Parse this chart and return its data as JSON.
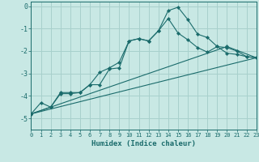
{
  "xlabel": "Humidex (Indice chaleur)",
  "background_color": "#c8e8e4",
  "grid_color": "#a8d0cc",
  "line_color": "#1a6b6b",
  "xlim": [
    0,
    23
  ],
  "ylim": [
    -5.5,
    0.2
  ],
  "yticks": [
    0,
    -1,
    -2,
    -3,
    -4,
    -5
  ],
  "xticks": [
    0,
    1,
    2,
    3,
    4,
    5,
    6,
    7,
    8,
    9,
    10,
    11,
    12,
    13,
    14,
    15,
    16,
    17,
    18,
    19,
    20,
    21,
    22,
    23
  ],
  "series": [
    {
      "x": [
        0,
        1,
        2,
        3,
        4,
        5,
        6,
        7,
        8,
        9,
        10,
        11,
        12,
        13,
        14,
        15,
        16,
        17,
        18,
        19,
        20,
        21,
        22,
        23
      ],
      "y": [
        -4.8,
        -4.3,
        -4.5,
        -3.9,
        -3.9,
        -3.85,
        -3.5,
        -3.5,
        -2.8,
        -2.75,
        -1.55,
        -1.45,
        -1.55,
        -1.1,
        -0.2,
        -0.05,
        -0.6,
        -1.25,
        -1.4,
        -1.8,
        -2.1,
        -2.15,
        -2.25,
        -2.3
      ],
      "has_marker": true
    },
    {
      "x": [
        0,
        2,
        3,
        4,
        5,
        6,
        7,
        8,
        9,
        10,
        11,
        12,
        13,
        14,
        15,
        16,
        17,
        18,
        19,
        20,
        21,
        22,
        23
      ],
      "y": [
        -4.8,
        -4.5,
        -3.85,
        -3.85,
        -3.85,
        -3.5,
        -2.95,
        -2.75,
        -2.5,
        -1.55,
        -1.45,
        -1.55,
        -1.1,
        -0.55,
        -1.2,
        -1.5,
        -1.85,
        -2.05,
        -1.8,
        -1.85,
        -2.0,
        -2.25,
        -2.3
      ],
      "has_marker": true
    },
    {
      "x": [
        0,
        23
      ],
      "y": [
        -4.8,
        -2.3
      ],
      "has_marker": false
    },
    {
      "x": [
        0,
        20,
        23
      ],
      "y": [
        -4.8,
        -1.8,
        -2.3
      ],
      "has_marker": true
    }
  ]
}
